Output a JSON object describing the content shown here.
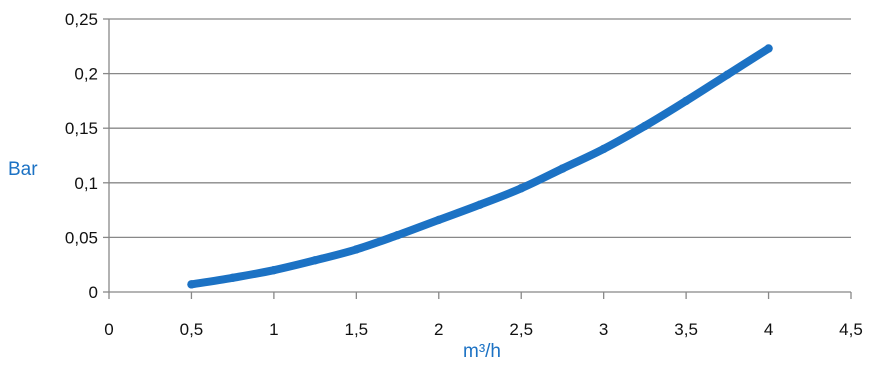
{
  "chart_data": {
    "type": "line",
    "xlabel": "m³/h",
    "ylabel": "Bar",
    "xlim": [
      0,
      4.5
    ],
    "ylim": [
      0,
      0.25
    ],
    "x_ticks": [
      {
        "value": 0,
        "label": "0"
      },
      {
        "value": 0.5,
        "label": "0,5"
      },
      {
        "value": 1,
        "label": "1"
      },
      {
        "value": 1.5,
        "label": "1,5"
      },
      {
        "value": 2,
        "label": "2"
      },
      {
        "value": 2.5,
        "label": "2,5"
      },
      {
        "value": 3,
        "label": "3"
      },
      {
        "value": 3.5,
        "label": "3,5"
      },
      {
        "value": 4,
        "label": "4"
      },
      {
        "value": 4.5,
        "label": "4,5"
      }
    ],
    "y_ticks": [
      {
        "value": 0,
        "label": "0"
      },
      {
        "value": 0.05,
        "label": "0,05"
      },
      {
        "value": 0.1,
        "label": "0,1"
      },
      {
        "value": 0.15,
        "label": "0,15"
      },
      {
        "value": 0.2,
        "label": "0,2"
      },
      {
        "value": 0.25,
        "label": "0,25"
      }
    ],
    "grid": "horizontal",
    "series": [
      {
        "color": "#1c72c4",
        "x": [
          0.5,
          0.75,
          1.0,
          1.25,
          1.5,
          1.75,
          2.0,
          2.25,
          2.5,
          2.75,
          3.0,
          3.25,
          3.5,
          3.75,
          4.0
        ],
        "y": [
          0.007,
          0.013,
          0.02,
          0.029,
          0.039,
          0.052,
          0.066,
          0.08,
          0.095,
          0.113,
          0.131,
          0.152,
          0.175,
          0.199,
          0.223
        ]
      }
    ],
    "colors": {
      "axis": "#888888",
      "grid": "#888888",
      "title": "#1c72c4",
      "tick": "#111111"
    }
  }
}
